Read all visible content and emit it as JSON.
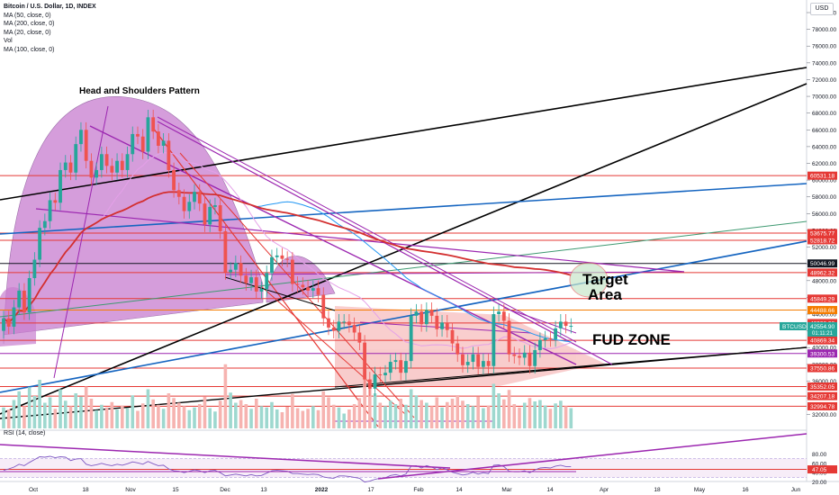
{
  "header": {
    "title": "Bitcoin / U.S. Dollar, 1D, INDEX",
    "indicators": [
      "MA (50, close, 0)",
      "MA (200, close, 0)",
      "MA (20, close, 0)",
      "Vol",
      "MA (100, close, 0)"
    ],
    "currency": "USD"
  },
  "chart_data": {
    "type": "candlestick",
    "symbol": "BTCUSD",
    "ylim": [
      30000,
      81000
    ],
    "y_ticks": [
      32000,
      34000,
      36000,
      38000,
      40000,
      42000,
      44000,
      46000,
      48000,
      50000,
      52000,
      54000,
      56000,
      58000,
      60000,
      62000,
      64000,
      66000,
      68000,
      70000,
      72000,
      74000,
      76000,
      78000,
      80000
    ],
    "y_tick_labels": [
      "32000.00",
      "34000.00",
      "36000.00",
      "38000.00",
      "40000.00",
      "42000.00",
      "44000.00",
      "46000.00",
      "48000.00",
      "50000.00",
      "52000.00",
      "54000.00",
      "56000.00",
      "58000.00",
      "60000.00",
      "62000.00",
      "64000.00",
      "66000.00",
      "68000.00",
      "70000.00",
      "72000.00",
      "74000.00",
      "76000.00",
      "78000.00",
      "80000.00"
    ],
    "x_labels": [
      "Oct",
      "18",
      "Nov",
      "15",
      "Dec",
      "13",
      "2022",
      "17",
      "Feb",
      "14",
      "Mar",
      "14",
      "Apr",
      "18",
      "May",
      "16",
      "Jun"
    ],
    "price_levels": [
      {
        "label": "60531.18",
        "value": 60531.18,
        "color": "#e53935"
      },
      {
        "label": "53675.77",
        "value": 53675.77,
        "color": "#e53935"
      },
      {
        "label": "52818.72",
        "value": 52818.72,
        "color": "#e53935"
      },
      {
        "label": "50046.99",
        "value": 50046.99,
        "color": "#131722"
      },
      {
        "label": "48962.32",
        "value": 48962.32,
        "color": "#e53935"
      },
      {
        "label": "45849.29",
        "value": 45849.29,
        "color": "#e53935"
      },
      {
        "label": "44488.66",
        "value": 44488.66,
        "color": "#f57c00"
      },
      {
        "label": "42938.38",
        "value": 42938.38,
        "color": "#e53935"
      },
      {
        "label": "40869.34",
        "value": 40869.34,
        "color": "#e53935"
      },
      {
        "label": "39300.53",
        "value": 39300.53,
        "color": "#9c27b0"
      },
      {
        "label": "37550.86",
        "value": 37550.86,
        "color": "#e53935"
      },
      {
        "label": "35352.05",
        "value": 35352.05,
        "color": "#e53935"
      },
      {
        "label": "34207.18",
        "value": 34207.18,
        "color": "#e53935"
      },
      {
        "label": "32994.78",
        "value": 32994.78,
        "color": "#e53935"
      }
    ],
    "last_price": {
      "symbol": "BTCUSD",
      "price": "42554.90",
      "countdown": "01:11:21"
    },
    "candles": [
      [
        42000,
        43500
      ],
      [
        43500,
        42500
      ],
      [
        42500,
        44800
      ],
      [
        44800,
        46800
      ],
      [
        46800,
        44200
      ],
      [
        44200,
        48300
      ],
      [
        48300,
        50500
      ],
      [
        50500,
        54300
      ],
      [
        54300,
        55100
      ],
      [
        55100,
        57600
      ],
      [
        57600,
        57300
      ],
      [
        57300,
        61200
      ],
      [
        61200,
        62100
      ],
      [
        62100,
        60900
      ],
      [
        60900,
        64300
      ],
      [
        64300,
        66000
      ],
      [
        66000,
        62300
      ],
      [
        62300,
        60300
      ],
      [
        60300,
        61200
      ],
      [
        61200,
        63100
      ],
      [
        63100,
        61700
      ],
      [
        61700,
        60900
      ],
      [
        60900,
        62300
      ],
      [
        62300,
        61200
      ],
      [
        61200,
        63100
      ],
      [
        63100,
        65500
      ],
      [
        65500,
        65200
      ],
      [
        65200,
        63400
      ],
      [
        63400,
        67500
      ],
      [
        67500,
        65800
      ],
      [
        65800,
        64100
      ],
      [
        64100,
        64700
      ],
      [
        64700,
        61200
      ],
      [
        61200,
        58800
      ],
      [
        58800,
        58000
      ],
      [
        58000,
        56300
      ],
      [
        56300,
        57400
      ],
      [
        57400,
        58600
      ],
      [
        58600,
        57200
      ],
      [
        57200,
        54700
      ],
      [
        54700,
        56800
      ],
      [
        56800,
        57000
      ],
      [
        57000,
        53900
      ],
      [
        53900,
        49000
      ],
      [
        49000,
        49300
      ],
      [
        49300,
        50100
      ],
      [
        50100,
        48600
      ],
      [
        48600,
        47700
      ],
      [
        47700,
        48400
      ],
      [
        48400,
        46700
      ],
      [
        46700,
        47000
      ],
      [
        47000,
        48900
      ],
      [
        48900,
        50800
      ],
      [
        50800,
        51000
      ],
      [
        51000,
        50600
      ],
      [
        50600,
        50500
      ],
      [
        50500,
        47600
      ],
      [
        47600,
        47500
      ],
      [
        47500,
        47200
      ],
      [
        47200,
        46800
      ],
      [
        46800,
        47100
      ],
      [
        47100,
        46300
      ],
      [
        46300,
        43500
      ],
      [
        43500,
        42400
      ],
      [
        42400,
        42000
      ],
      [
        42000,
        43100
      ],
      [
        43100,
        43100
      ],
      [
        43100,
        42700
      ],
      [
        42700,
        41800
      ],
      [
        41800,
        40600
      ],
      [
        40600,
        36200
      ],
      [
        36200,
        35100
      ],
      [
        35100,
        36800
      ],
      [
        36800,
        36700
      ],
      [
        36700,
        37000
      ],
      [
        37000,
        38300
      ],
      [
        38300,
        38500
      ],
      [
        38500,
        37000
      ],
      [
        37000,
        38400
      ],
      [
        38400,
        43800
      ],
      [
        43800,
        44300
      ],
      [
        44300,
        42800
      ],
      [
        42800,
        44500
      ],
      [
        44500,
        43800
      ],
      [
        43800,
        42200
      ],
      [
        42200,
        43000
      ],
      [
        43000,
        42100
      ],
      [
        42100,
        40500
      ],
      [
        40500,
        39200
      ],
      [
        39200,
        37900
      ],
      [
        37900,
        38300
      ],
      [
        38300,
        39200
      ],
      [
        39200,
        37700
      ],
      [
        37700,
        38400
      ],
      [
        38400,
        37800
      ],
      [
        37800,
        44000
      ],
      [
        44000,
        44300
      ],
      [
        44300,
        43200
      ],
      [
        43200,
        39200
      ],
      [
        39200,
        39000
      ],
      [
        39000,
        38800
      ],
      [
        38800,
        39400
      ],
      [
        39400,
        37800
      ],
      [
        37800,
        39700
      ],
      [
        39700,
        40900
      ],
      [
        40900,
        41100
      ],
      [
        41100,
        41000
      ],
      [
        41000,
        42300
      ],
      [
        42300,
        43100
      ],
      [
        43100,
        42600
      ],
      [
        42600,
        42600
      ]
    ],
    "volumes": [
      0.31,
      0.28,
      0.42,
      0.55,
      0.33,
      0.61,
      0.48,
      0.72,
      0.38,
      0.46,
      0.29,
      0.58,
      0.41,
      0.33,
      0.52,
      0.47,
      0.62,
      0.44,
      0.27,
      0.35,
      0.31,
      0.39,
      0.28,
      0.34,
      0.3,
      0.49,
      0.26,
      0.37,
      0.58,
      0.43,
      0.35,
      0.29,
      0.52,
      0.45,
      0.38,
      0.33,
      0.27,
      0.31,
      0.36,
      0.47,
      0.3,
      0.25,
      0.41,
      0.95,
      0.53,
      0.38,
      0.42,
      0.36,
      0.29,
      0.44,
      0.33,
      0.31,
      0.39,
      0.28,
      0.24,
      0.32,
      0.51,
      0.3,
      0.26,
      0.29,
      0.33,
      0.27,
      0.55,
      0.46,
      0.35,
      0.31,
      0.22,
      0.28,
      0.36,
      0.45,
      0.82,
      0.63,
      0.52,
      0.38,
      0.33,
      0.41,
      0.36,
      0.44,
      0.35,
      0.58,
      0.49,
      0.42,
      0.38,
      0.33,
      0.46,
      0.31,
      0.39,
      0.44,
      0.48,
      0.41,
      0.36,
      0.33,
      0.47,
      0.3,
      0.34,
      0.66,
      0.52,
      0.43,
      0.57,
      0.36,
      0.31,
      0.38,
      0.45,
      0.4,
      0.42,
      0.34,
      0.29,
      0.37,
      0.41,
      0.33,
      0.3
    ],
    "rsi": {
      "label": "RSI (14, close)",
      "current": "47.05",
      "ylim": [
        20,
        100
      ],
      "ticks": [
        "80.00",
        "60.00",
        "40.00",
        "20.00"
      ],
      "values": [
        45,
        48,
        52,
        58,
        55,
        62,
        68,
        74,
        73,
        75,
        72,
        74,
        73,
        66,
        69,
        70,
        58,
        55,
        57,
        60,
        57,
        55,
        58,
        56,
        59,
        63,
        61,
        58,
        64,
        59,
        55,
        56,
        48,
        44,
        43,
        40,
        43,
        46,
        44,
        40,
        44,
        45,
        40,
        33,
        35,
        37,
        35,
        33,
        36,
        33,
        34,
        39,
        44,
        45,
        44,
        43,
        38,
        38,
        37,
        36,
        37,
        36,
        31,
        29,
        28,
        33,
        33,
        32,
        30,
        28,
        20,
        22,
        26,
        28,
        29,
        34,
        36,
        33,
        37,
        54,
        55,
        50,
        55,
        52,
        47,
        50,
        46,
        41,
        38,
        35,
        37,
        41,
        37,
        40,
        38,
        56,
        57,
        53,
        43,
        42,
        42,
        44,
        40,
        46,
        50,
        51,
        50,
        54,
        56,
        53,
        53
      ]
    }
  },
  "annotations": {
    "hs_pattern": "Head and Shoulders Pattern",
    "target_line1": "Target",
    "target_line2": "Area",
    "fud_zone": "FUD ZONE"
  },
  "colors": {
    "up": "#26a69a",
    "down": "#ef5350",
    "purple": "#9c27b0",
    "blue": "#1565c0",
    "fill_purple": "#c77dcf",
    "fud_fill": "#f8c9c9"
  }
}
